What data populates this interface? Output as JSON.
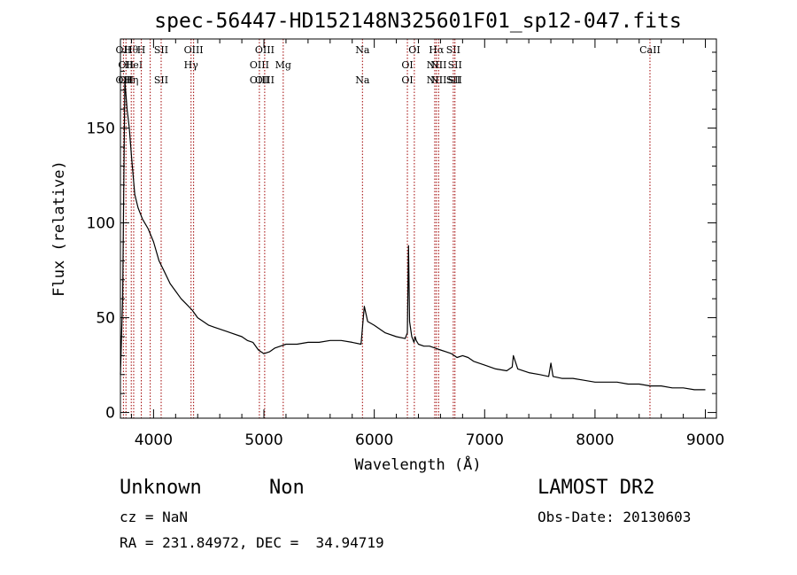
{
  "chart_data": {
    "type": "line",
    "title": "spec-56447-HD152148N325601F01_sp12-047.fits",
    "xlabel": "Wavelength (Å)",
    "ylabel": "Flux (relative)",
    "xlim": [
      3700,
      9100
    ],
    "ylim": [
      -3,
      197
    ],
    "xticks": [
      4000,
      5000,
      6000,
      7000,
      8000,
      9000
    ],
    "yticks": [
      0,
      50,
      100,
      150
    ],
    "grid": false,
    "series": [
      {
        "x": [
          3700,
          3720,
          3740,
          3760,
          3780,
          3800,
          3830,
          3860,
          3900,
          3950,
          4000,
          4050,
          4100,
          4150,
          4200,
          4250,
          4300,
          4350,
          4400,
          4450,
          4500,
          4550,
          4600,
          4700,
          4800,
          4850,
          4900,
          4950,
          5000,
          5050,
          5100,
          5150,
          5200,
          5300,
          5400,
          5500,
          5600,
          5700,
          5800,
          5880,
          5910,
          5940,
          6000,
          6100,
          6200,
          6280,
          6300,
          6310,
          6320,
          6340,
          6360,
          6370,
          6380,
          6400,
          6450,
          6500,
          6550,
          6600,
          6650,
          6700,
          6750,
          6800,
          6850,
          6900,
          6950,
          7000,
          7100,
          7200,
          7250,
          7260,
          7300,
          7400,
          7500,
          7580,
          7600,
          7620,
          7700,
          7800,
          7900,
          8000,
          8100,
          8200,
          8300,
          8400,
          8500,
          8600,
          8700,
          8800,
          8900,
          9000
        ],
        "y": [
          20,
          60,
          175,
          160,
          150,
          135,
          115,
          108,
          102,
          97,
          90,
          80,
          74,
          68,
          64,
          60,
          57,
          54,
          50,
          48,
          46,
          45,
          44,
          42,
          40,
          38,
          37,
          33,
          31,
          32,
          34,
          35,
          36,
          36,
          37,
          37,
          38,
          38,
          37,
          36,
          56,
          48,
          46,
          42,
          40,
          39,
          42,
          88,
          48,
          40,
          37,
          40,
          38,
          36,
          35,
          35,
          34,
          33,
          32,
          31,
          29,
          30,
          29,
          27,
          26,
          25,
          23,
          22,
          24,
          30,
          23,
          21,
          20,
          19,
          26,
          19,
          18,
          18,
          17,
          16,
          16,
          16,
          15,
          15,
          14,
          14,
          13,
          13,
          12,
          12
        ]
      }
    ],
    "line_markers": [
      {
        "wave": 3727,
        "top": "OII",
        "bottom": "OII"
      },
      {
        "wave": 3750,
        "top": "OII",
        "bottom": "OII"
      },
      {
        "wave": 3798,
        "top": "Hθ",
        "bottom": "Hη"
      },
      {
        "wave": 3820,
        "top": "HeI",
        "bottom": ""
      },
      {
        "wave": 3889,
        "top": "H",
        "bottom": ""
      },
      {
        "wave": 3970,
        "top": "",
        "bottom": ""
      },
      {
        "wave": 4069,
        "top": "SII",
        "bottom": "SII"
      },
      {
        "wave": 4340,
        "top": "Hγ",
        "bottom": ""
      },
      {
        "wave": 4363,
        "top": "OIII",
        "bottom": ""
      },
      {
        "wave": 4959,
        "top": "OIII",
        "bottom": "OIII"
      },
      {
        "wave": 5007,
        "top": "OIII",
        "bottom": "OIII"
      },
      {
        "wave": 5175,
        "top": "Mg",
        "bottom": ""
      },
      {
        "wave": 5893,
        "top": "Na",
        "bottom": "Na"
      },
      {
        "wave": 6300,
        "top": "OI",
        "bottom": "OI"
      },
      {
        "wave": 6363,
        "top": "OI",
        "bottom": ""
      },
      {
        "wave": 6548,
        "top": "NII",
        "bottom": "NII"
      },
      {
        "wave": 6563,
        "top": "Hα",
        "bottom": ""
      },
      {
        "wave": 6583,
        "top": "NII",
        "bottom": "NII"
      },
      {
        "wave": 6716,
        "top": "SII",
        "bottom": "SII"
      },
      {
        "wave": 6731,
        "top": "SII",
        "bottom": "SII"
      },
      {
        "wave": 8498,
        "top": "CaII",
        "bottom": ""
      }
    ]
  },
  "info": {
    "class": "Unknown",
    "subclass": "Non",
    "survey": "LAMOST DR2",
    "cz": "cz = NaN",
    "obs_date": "Obs-Date: 20130603",
    "radec": "RA = 231.84972, DEC =  34.94719"
  },
  "colors": {
    "spectrum": "#000000",
    "line_markers": "#a00000",
    "axes": "#000000"
  }
}
